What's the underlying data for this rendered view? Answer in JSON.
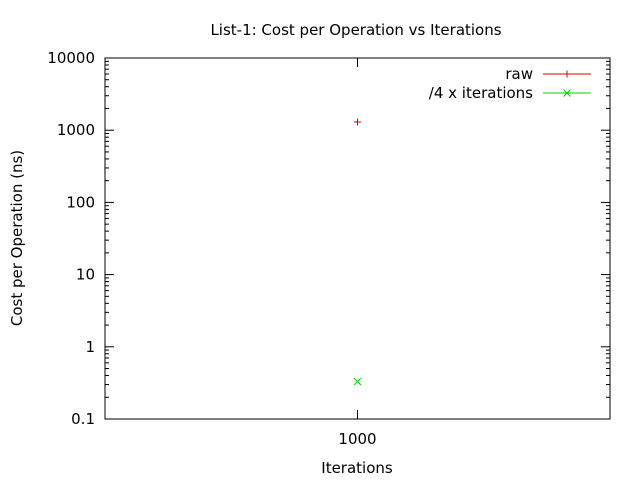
{
  "chart_data": {
    "type": "scatter",
    "title": "List-1: Cost per Operation vs Iterations",
    "xlabel": "Iterations",
    "ylabel": "Cost per Operation (ns)",
    "yscale": "log",
    "ylim": [
      0.1,
      10000
    ],
    "xticks": [
      "1000"
    ],
    "yticks": [
      "0.1",
      "1",
      "10",
      "100",
      "1000",
      "10000"
    ],
    "grid": false,
    "legend_position": "top-right",
    "series": [
      {
        "name": "raw",
        "marker": "+",
        "color": "#e00000",
        "points": [
          {
            "x": 1000,
            "y": 1300
          }
        ]
      },
      {
        "name": "/4 x iterations",
        "marker": "x",
        "color": "#00d000",
        "points": [
          {
            "x": 1000,
            "y": 0.33
          }
        ]
      }
    ]
  }
}
